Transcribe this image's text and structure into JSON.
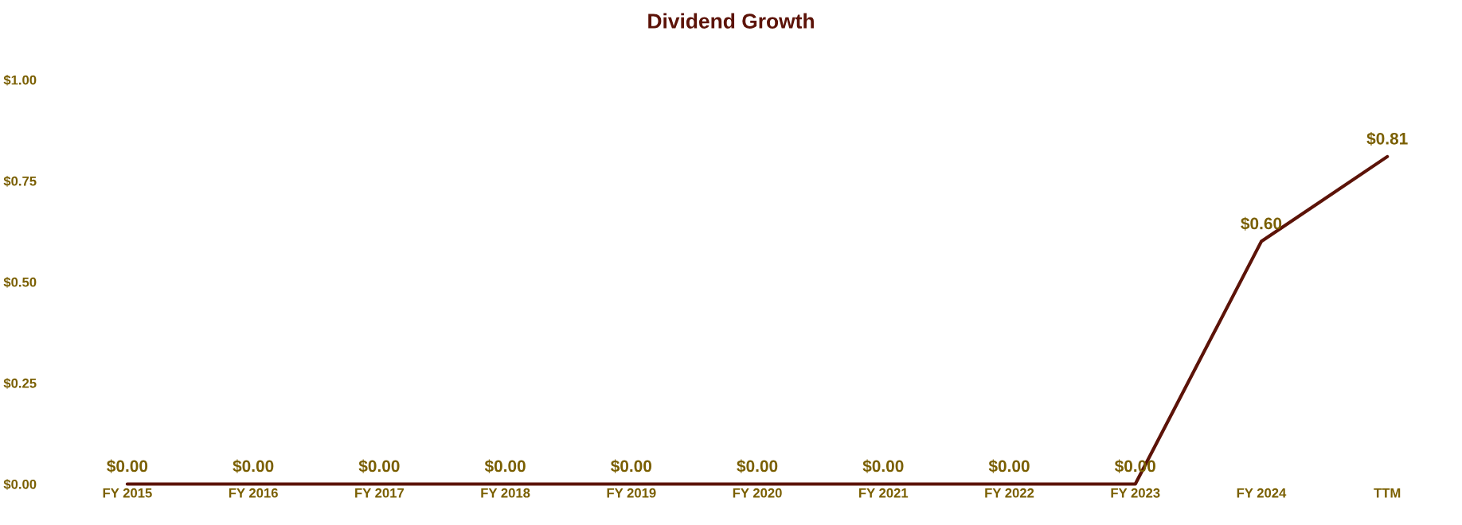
{
  "chart_data": {
    "type": "line",
    "title": "Dividend Growth",
    "categories": [
      "FY 2015",
      "FY 2016",
      "FY 2017",
      "FY 2018",
      "FY 2019",
      "FY 2020",
      "FY 2021",
      "FY 2022",
      "FY 2023",
      "FY 2024",
      "TTM"
    ],
    "series": [
      {
        "color": "#5c1308",
        "values": [
          0,
          0,
          0,
          0,
          0,
          0,
          0,
          0,
          0,
          0.6,
          0.81
        ],
        "value_labels": [
          "$0.00",
          "$0.00",
          "$0.00",
          "$0.00",
          "$0.00",
          "$0.00",
          "$0.00",
          "$0.00",
          "$0.00",
          "$0.60",
          "$0.81"
        ]
      }
    ],
    "ylim": [
      0,
      1
    ],
    "yticks": [
      {
        "value": 0,
        "label": "$0.00"
      },
      {
        "value": 0.25,
        "label": "$0.25"
      },
      {
        "value": 0.5,
        "label": "$0.50"
      },
      {
        "value": 0.75,
        "label": "$0.75"
      },
      {
        "value": 1,
        "label": "$1.00"
      }
    ],
    "grid": false,
    "legend": false,
    "marker": "none",
    "line_style": "solid"
  }
}
